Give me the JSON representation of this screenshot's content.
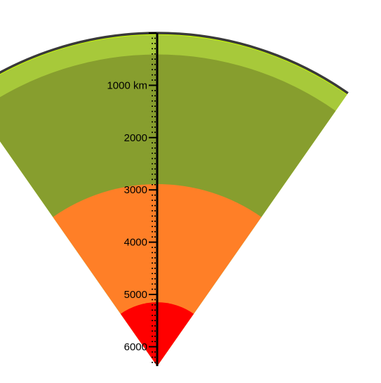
{
  "diagram": {
    "title": "",
    "unit": "km",
    "max_depth_km": 6371,
    "layers": [
      {
        "name": "",
        "top_km": 0,
        "bottom_km": 35,
        "color": "#ccff00"
      },
      {
        "name": "",
        "top_km": 35,
        "bottom_km": 410,
        "color": "#a7c93a"
      },
      {
        "name": "",
        "top_km": 410,
        "bottom_km": 2890,
        "color": "#879e2e"
      },
      {
        "name": "",
        "top_km": 2890,
        "bottom_km": 5150,
        "color": "#ff7f27"
      },
      {
        "name": "",
        "top_km": 5150,
        "bottom_km": 6371,
        "color": "#ff0000"
      }
    ],
    "scale": {
      "major_step_km": 1000,
      "minor_step_km": 100,
      "labels": [
        {
          "depth_km": 1000,
          "text": "1000 km"
        },
        {
          "depth_km": 2000,
          "text": "2000"
        },
        {
          "depth_km": 3000,
          "text": "3000"
        },
        {
          "depth_km": 4000,
          "text": "4000"
        },
        {
          "depth_km": 5000,
          "text": "5000"
        },
        {
          "depth_km": 6000,
          "text": "6000"
        }
      ]
    },
    "colors": {
      "surface_outline": "#3a3a3a",
      "axis": "#000000"
    }
  }
}
